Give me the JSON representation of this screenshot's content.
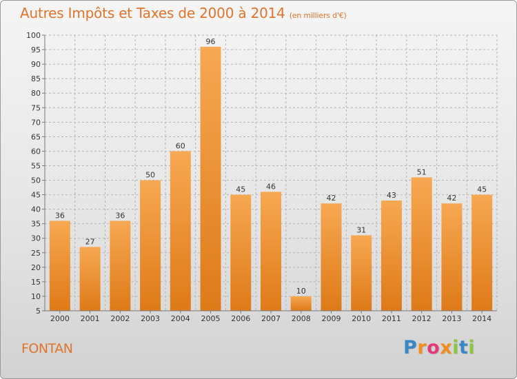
{
  "header": {
    "title": "Autres Impôts et Taxes de 2000 à 2014",
    "subtitle": "(en milliers d'€)"
  },
  "footer": {
    "city": "FONTAN",
    "brand": "Proxiti",
    "brand_letters": [
      {
        "ch": "P",
        "color": "#3b86c6"
      },
      {
        "ch": "r",
        "color": "#f28c1c"
      },
      {
        "ch": "o",
        "color": "#e23a7b"
      },
      {
        "ch": "x",
        "color": "#f28c1c"
      },
      {
        "ch": "i",
        "color": "#8cc63f"
      },
      {
        "ch": "t",
        "color": "#3b86c6"
      },
      {
        "ch": "i",
        "color": "#8cc63f"
      }
    ]
  },
  "colors": {
    "accent": "#e0742a",
    "bar_top": "#f7a852",
    "bar_bottom": "#de7a18",
    "grid": "#b3b3b3",
    "text": "#333333"
  },
  "chart_data": {
    "type": "bar",
    "title": "Autres Impôts et Taxes de 2000 à 2014",
    "subtitle": "(en milliers d'€)",
    "categories": [
      "2000",
      "2001",
      "2002",
      "2003",
      "2004",
      "2005",
      "2006",
      "2007",
      "2008",
      "2009",
      "2010",
      "2011",
      "2012",
      "2013",
      "2014"
    ],
    "values": [
      36,
      27,
      36,
      50,
      60,
      96,
      45,
      46,
      10,
      42,
      31,
      43,
      51,
      42,
      45
    ],
    "ylim": [
      5,
      100
    ],
    "yticks": [
      5,
      10,
      15,
      20,
      25,
      30,
      35,
      40,
      45,
      50,
      55,
      60,
      65,
      70,
      75,
      80,
      85,
      90,
      95,
      100
    ],
    "grid": "horizontal dashed",
    "data_labels": true,
    "legend": "none"
  }
}
